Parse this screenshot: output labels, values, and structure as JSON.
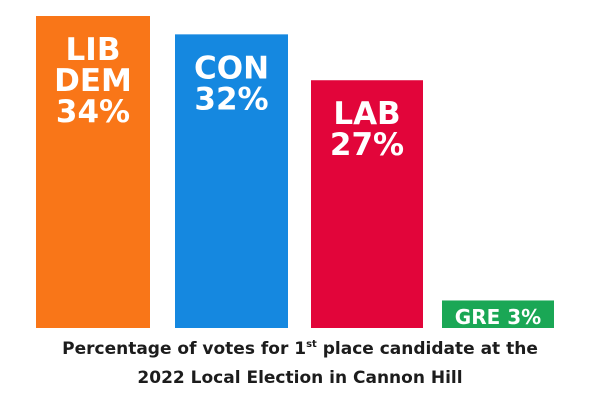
{
  "chart_data": {
    "type": "bar",
    "categories": [
      "LIB DEM",
      "CON",
      "LAB",
      "GRE"
    ],
    "values": [
      34,
      32,
      27,
      3
    ],
    "value_labels": [
      "34%",
      "32%",
      "27%",
      "3%"
    ],
    "colors": [
      "#f97618",
      "#1588e0",
      "#e2053a",
      "#1aa755"
    ],
    "ylim": [
      0,
      34
    ],
    "title_parts": [
      "Percentage of votes for 1",
      "st",
      " place candidate at the",
      "2022 Local Election in Cannon Hill"
    ],
    "xlabel": "",
    "ylabel": "",
    "grid": false,
    "legend": "none"
  }
}
